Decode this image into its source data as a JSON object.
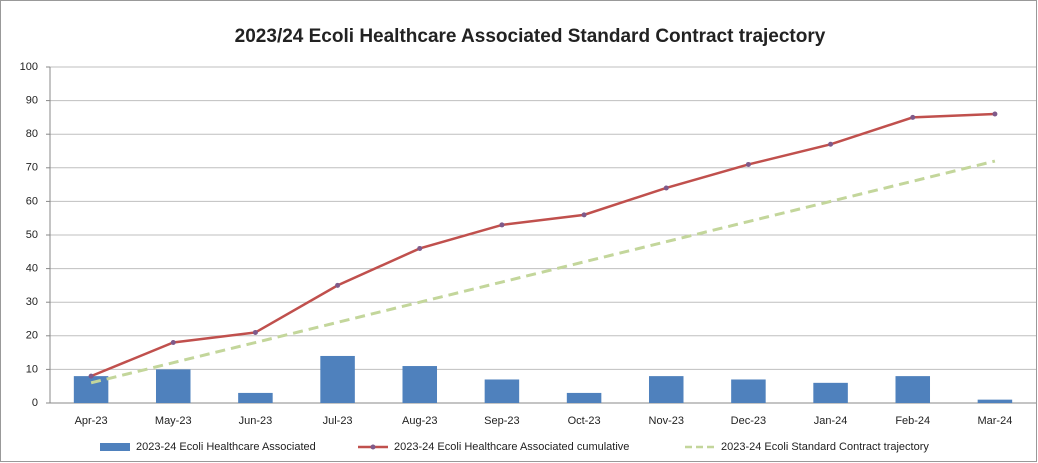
{
  "chart_data": {
    "type": "bar",
    "title": "2023/24 Ecoli Healthcare Associated Standard Contract trajectory",
    "categories": [
      "Apr-23",
      "May-23",
      "Jun-23",
      "Jul-23",
      "Aug-23",
      "Sep-23",
      "Oct-23",
      "Nov-23",
      "Dec-23",
      "Jan-24",
      "Feb-24",
      "Mar-24"
    ],
    "series": [
      {
        "name": "2023-24 Ecoli Healthcare Associated",
        "kind": "bar",
        "color": "#4f81bd",
        "values": [
          8,
          10,
          3,
          14,
          11,
          7,
          3,
          8,
          7,
          6,
          8,
          1
        ]
      },
      {
        "name": "2023-24 Ecoli Healthcare Associated cumulative",
        "kind": "line",
        "color": "#c0504d",
        "marker": true,
        "values": [
          8,
          18,
          21,
          35,
          46,
          53,
          56,
          64,
          71,
          77,
          85,
          86
        ]
      },
      {
        "name": "2023-24 Ecoli Standard Contract trajectory",
        "kind": "line",
        "color": "#c3d69b",
        "dashed": true,
        "values": [
          6,
          12,
          18,
          24,
          30,
          36,
          42,
          48,
          54,
          60,
          66,
          72
        ]
      }
    ],
    "ylim": [
      0,
      100
    ],
    "yticks": [
      0,
      10,
      20,
      30,
      40,
      50,
      60,
      70,
      80,
      90,
      100
    ],
    "grid": true,
    "legend": "bottom"
  }
}
